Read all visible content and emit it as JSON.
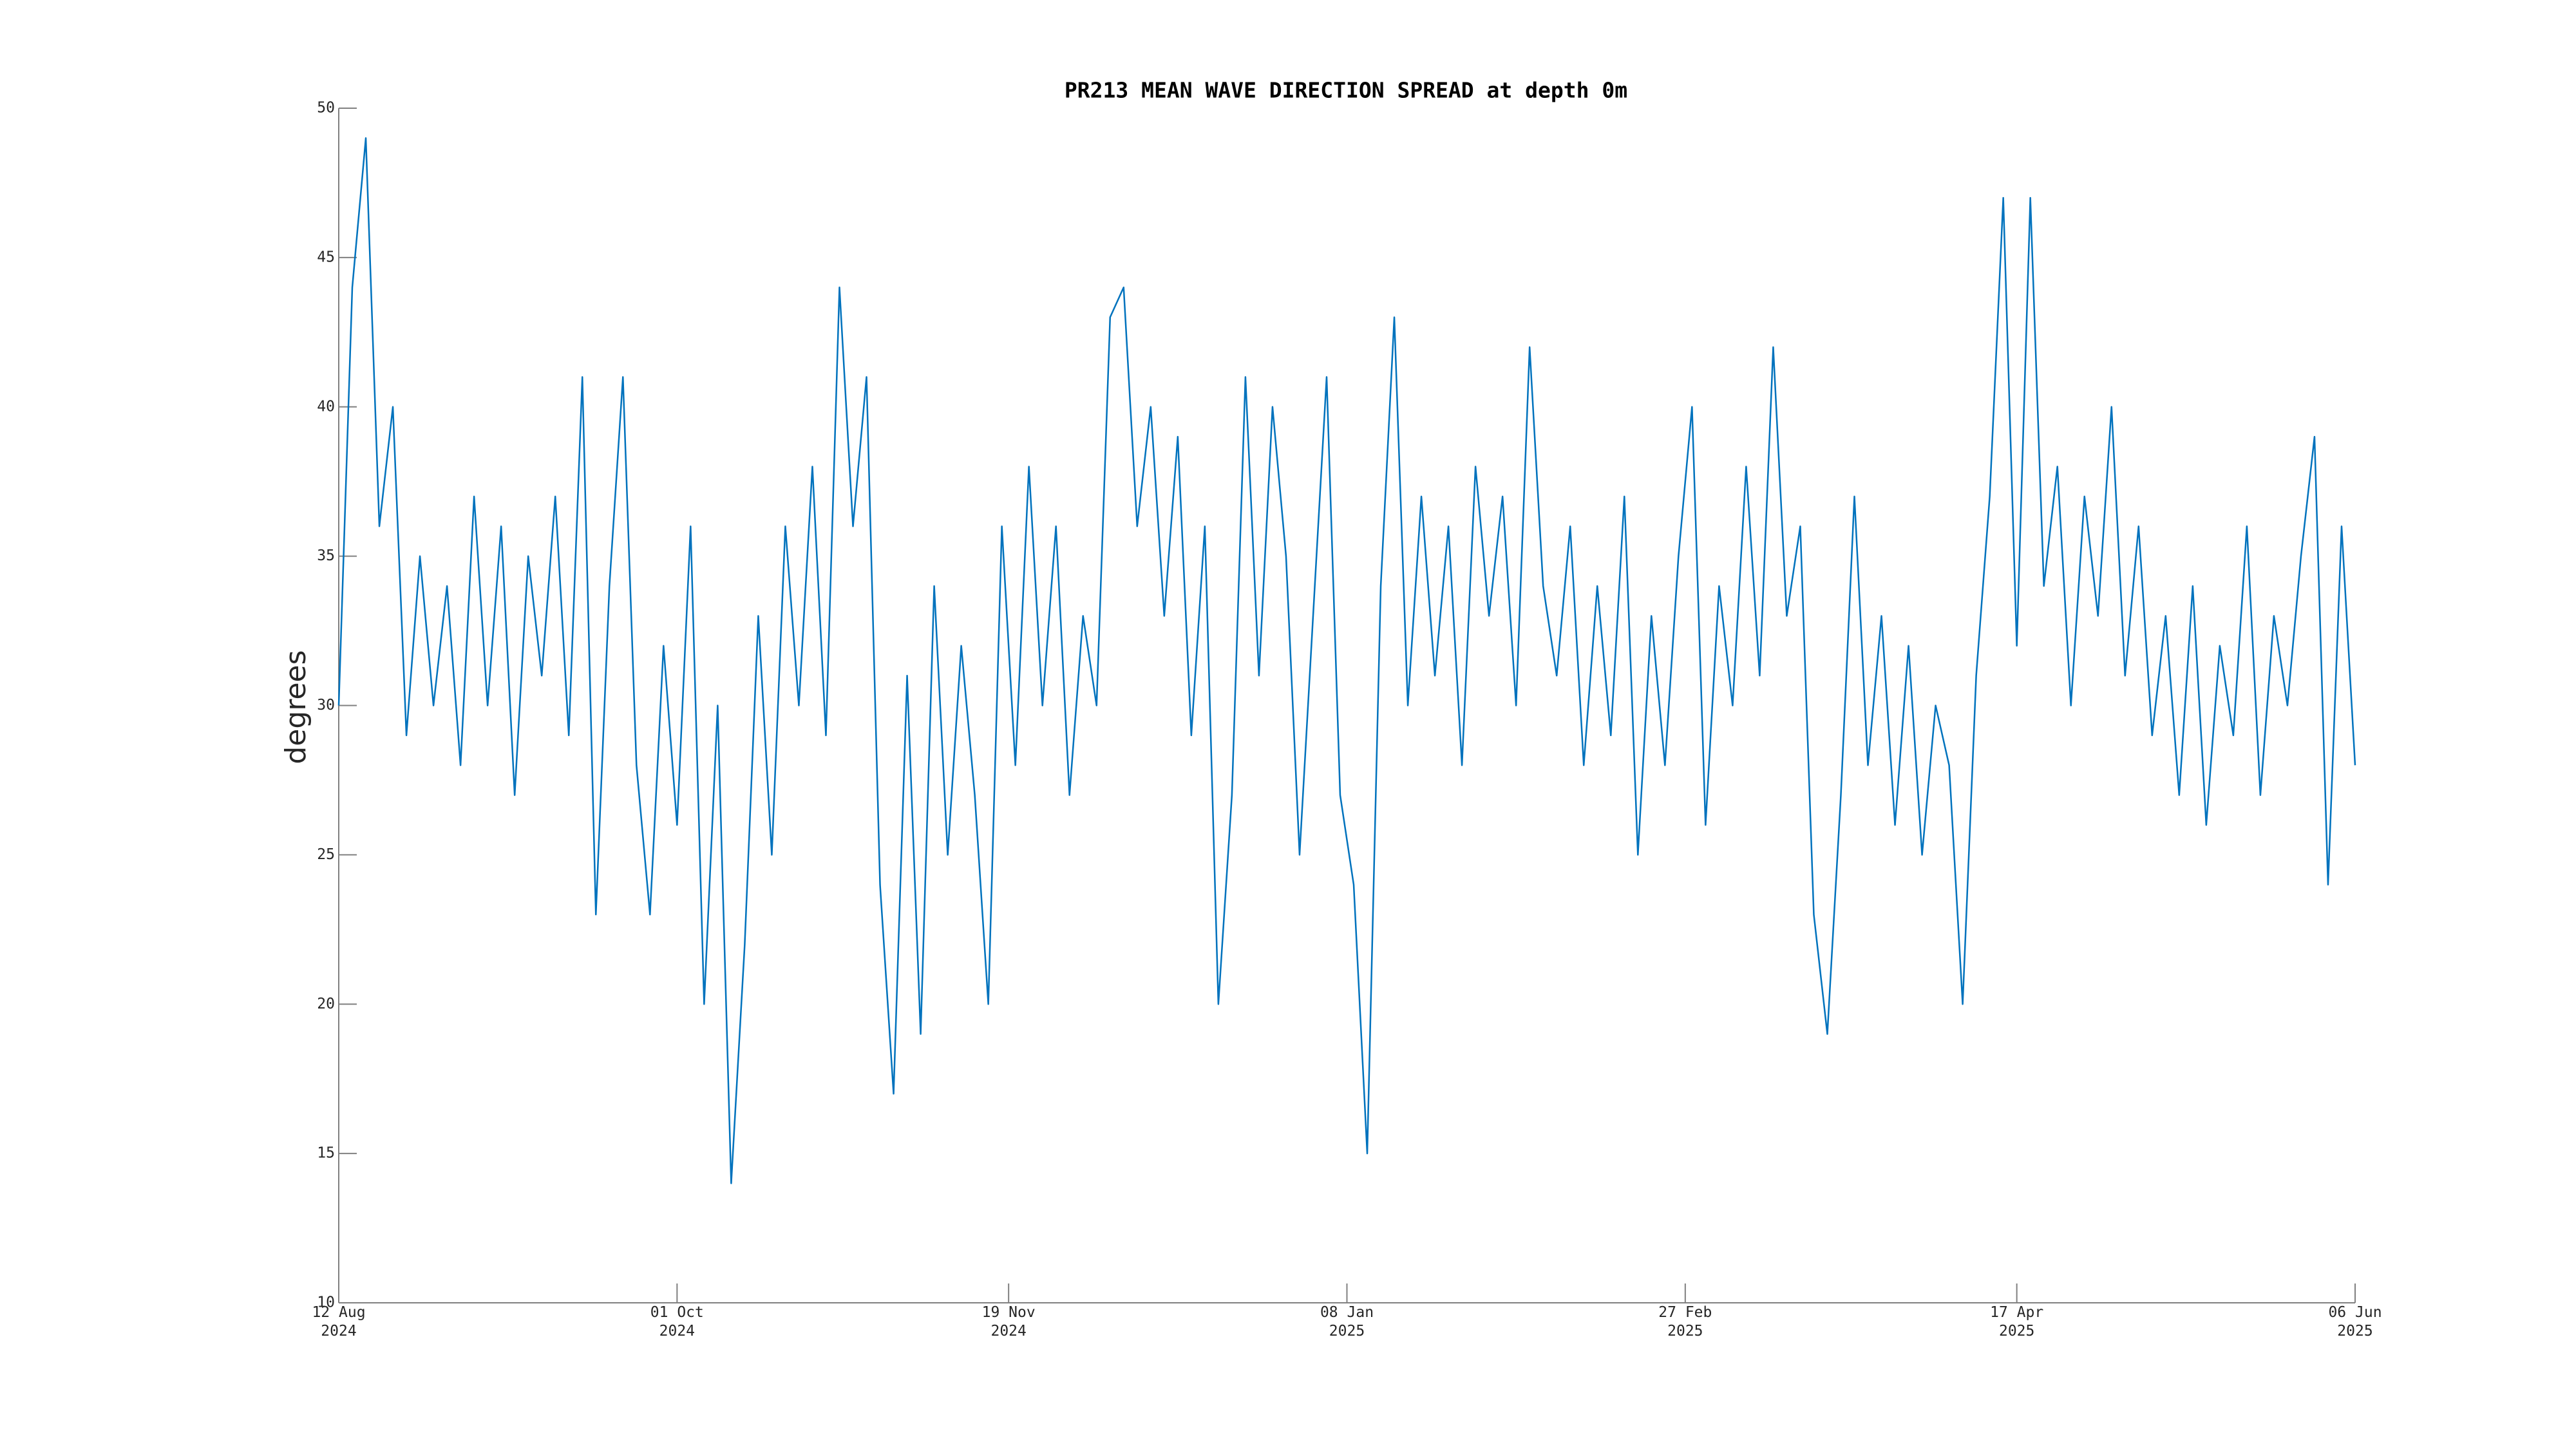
{
  "chart_data": {
    "type": "line",
    "title": "PR213 MEAN WAVE DIRECTION SPREAD at depth 0m",
    "ylabel": "degrees",
    "x": [
      "2024-08-12",
      "2024-08-14",
      "2024-08-16",
      "2024-08-18",
      "2024-08-20",
      "2024-08-22",
      "2024-08-24",
      "2024-08-26",
      "2024-08-28",
      "2024-08-30",
      "2024-09-01",
      "2024-09-03",
      "2024-09-05",
      "2024-09-07",
      "2024-09-09",
      "2024-09-11",
      "2024-09-13",
      "2024-09-15",
      "2024-09-17",
      "2024-09-19",
      "2024-09-21",
      "2024-09-23",
      "2024-09-25",
      "2024-09-27",
      "2024-09-29",
      "2024-10-01",
      "2024-10-03",
      "2024-10-05",
      "2024-10-07",
      "2024-10-09",
      "2024-10-11",
      "2024-10-13",
      "2024-10-15",
      "2024-10-17",
      "2024-10-19",
      "2024-10-21",
      "2024-10-23",
      "2024-10-25",
      "2024-10-27",
      "2024-10-29",
      "2024-10-31",
      "2024-11-02",
      "2024-11-04",
      "2024-11-06",
      "2024-11-08",
      "2024-11-10",
      "2024-11-12",
      "2024-11-14",
      "2024-11-16",
      "2024-11-18",
      "2024-11-20",
      "2024-11-22",
      "2024-11-24",
      "2024-11-26",
      "2024-11-28",
      "2024-11-30",
      "2024-12-02",
      "2024-12-04",
      "2024-12-06",
      "2024-12-08",
      "2024-12-10",
      "2024-12-12",
      "2024-12-14",
      "2024-12-16",
      "2024-12-18",
      "2024-12-20",
      "2024-12-22",
      "2024-12-24",
      "2024-12-26",
      "2024-12-28",
      "2024-12-30",
      "2025-01-01",
      "2025-01-03",
      "2025-01-05",
      "2025-01-07",
      "2025-01-09",
      "2025-01-11",
      "2025-01-13",
      "2025-01-15",
      "2025-01-17",
      "2025-01-19",
      "2025-01-21",
      "2025-01-23",
      "2025-01-25",
      "2025-01-27",
      "2025-01-29",
      "2025-01-31",
      "2025-02-02",
      "2025-02-04",
      "2025-02-06",
      "2025-02-08",
      "2025-02-10",
      "2025-02-12",
      "2025-02-14",
      "2025-02-16",
      "2025-02-18",
      "2025-02-20",
      "2025-02-22",
      "2025-02-24",
      "2025-02-26",
      "2025-02-28",
      "2025-03-02",
      "2025-03-04",
      "2025-03-06",
      "2025-03-08",
      "2025-03-10",
      "2025-03-12",
      "2025-03-14",
      "2025-03-16",
      "2025-03-18",
      "2025-03-20",
      "2025-03-22",
      "2025-03-24",
      "2025-03-26",
      "2025-03-28",
      "2025-03-30",
      "2025-04-01",
      "2025-04-03",
      "2025-04-05",
      "2025-04-07",
      "2025-04-09",
      "2025-04-11",
      "2025-04-13",
      "2025-04-15",
      "2025-04-17",
      "2025-04-19",
      "2025-04-21",
      "2025-04-23",
      "2025-04-25",
      "2025-04-27",
      "2025-04-29",
      "2025-05-01",
      "2025-05-03",
      "2025-05-05",
      "2025-05-07",
      "2025-05-09",
      "2025-05-11",
      "2025-05-13",
      "2025-05-15",
      "2025-05-17",
      "2025-05-19",
      "2025-05-21",
      "2025-05-23",
      "2025-05-25",
      "2025-05-27",
      "2025-05-29",
      "2025-05-31",
      "2025-06-02",
      "2025-06-04",
      "2025-06-06"
    ],
    "series": [
      {
        "color": "#0072bd",
        "values": [
          30,
          44,
          49,
          36,
          40,
          29,
          35,
          30,
          34,
          28,
          37,
          30,
          36,
          27,
          35,
          31,
          37,
          29,
          41,
          23,
          34,
          41,
          28,
          23,
          32,
          26,
          36,
          20,
          30,
          14,
          22,
          33,
          25,
          36,
          30,
          38,
          29,
          44,
          36,
          41,
          24,
          17,
          31,
          19,
          34,
          25,
          32,
          27,
          20,
          36,
          28,
          38,
          30,
          36,
          27,
          33,
          30,
          43,
          44,
          36,
          40,
          33,
          39,
          29,
          36,
          20,
          27,
          41,
          31,
          40,
          35,
          25,
          33,
          41,
          27,
          24,
          15,
          34,
          43,
          30,
          37,
          31,
          36,
          28,
          38,
          33,
          37,
          30,
          42,
          34,
          31,
          36,
          28,
          34,
          29,
          37,
          25,
          33,
          28,
          35,
          40,
          26,
          34,
          30,
          38,
          31,
          42,
          33,
          36,
          23,
          19,
          27,
          37,
          28,
          33,
          26,
          32,
          25,
          30,
          28,
          20,
          31,
          37,
          47,
          32,
          47,
          34,
          38,
          30,
          37,
          33,
          40,
          31,
          36,
          29,
          33,
          27,
          34,
          26,
          32,
          29,
          36,
          27,
          33,
          30,
          35,
          39,
          24,
          36,
          28
        ]
      }
    ],
    "xlim": [
      "2024-08-12",
      "2025-06-06"
    ],
    "xticks": [
      {
        "value": "2024-08-12",
        "label": [
          "12 Aug",
          "2024"
        ]
      },
      {
        "value": "2024-10-01",
        "label": [
          "01 Oct",
          "2024"
        ]
      },
      {
        "value": "2024-11-19",
        "label": [
          "19 Nov",
          "2024"
        ]
      },
      {
        "value": "2025-01-08",
        "label": [
          "08 Jan",
          "2025"
        ]
      },
      {
        "value": "2025-02-27",
        "label": [
          "27 Feb",
          "2025"
        ]
      },
      {
        "value": "2025-04-17",
        "label": [
          "17 Apr",
          "2025"
        ]
      },
      {
        "value": "2025-06-06",
        "label": [
          "06 Jun",
          "2025"
        ]
      }
    ],
    "ylim": [
      10,
      50
    ],
    "yticks": [
      10,
      15,
      20,
      25,
      30,
      35,
      40,
      45,
      50
    ]
  }
}
